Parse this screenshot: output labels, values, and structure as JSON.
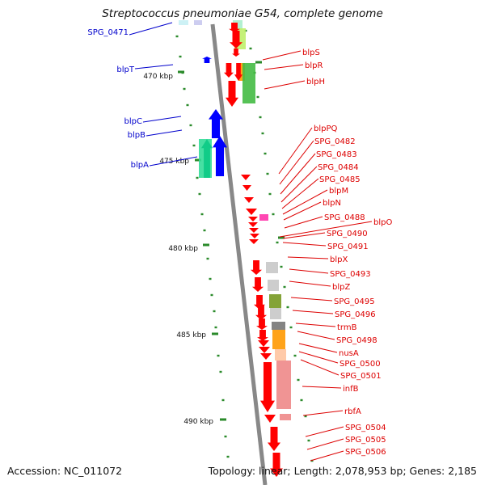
{
  "title": "Streptococcus pneumoniae G54, complete genome",
  "footer": {
    "accession": "Accession: NC_011072",
    "stats": "Topology: linear; Length: 2,078,953 bp; Genes: 2,185"
  },
  "colors": {
    "blue_label": "#0000cc",
    "red_label": "#dd0000",
    "tick_mark": "#2a8a2a",
    "backbone": "#888888"
  },
  "ruler": [
    "470 kbp",
    "475 kbp",
    "480 kbp",
    "485 kbp",
    "490 kbp"
  ],
  "left_labels": [
    "SPG_0471",
    "blpT",
    "blpC",
    "blpB",
    "blpA"
  ],
  "right_labels": [
    "blpS",
    "blpR",
    "blpH",
    "blpPQ",
    "SPG_0482",
    "SPG_0483",
    "SPG_0484",
    "SPG_0485",
    "blpM",
    "blpN",
    "SPG_0488",
    "blpO",
    "SPG_0490",
    "SPG_0491",
    "blpX",
    "SPG_0493",
    "blpZ",
    "SPG_0495",
    "SPG_0496",
    "trmB",
    "SPG_0498",
    "nusA",
    "SPG_0500",
    "SPG_0501",
    "infB",
    "rbfA",
    "SPG_0504",
    "SPG_0505",
    "SPG_0506"
  ]
}
